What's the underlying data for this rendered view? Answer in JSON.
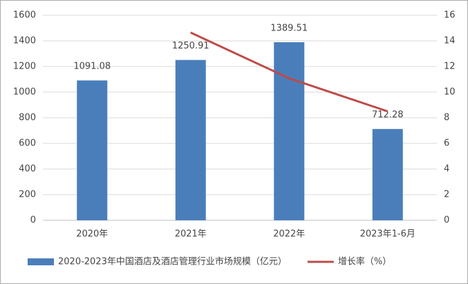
{
  "chart_data": {
    "type": "bar",
    "categories": [
      "2020年",
      "2021年",
      "2022年",
      "2023年1-6月"
    ],
    "series": [
      {
        "name": "2020-2023年中国酒店及酒店管理行业市场规模（亿元）",
        "type": "bar",
        "color": "#4a7ebb",
        "values": [
          1091.08,
          1250.91,
          1389.51,
          712.28
        ],
        "data_labels": true
      },
      {
        "name": "增长率（%）",
        "type": "line",
        "axis": "y2",
        "color": "#be4b48",
        "values": [
          null,
          14.65,
          11.08,
          8.5
        ]
      }
    ],
    "ylim": [
      0,
      1600
    ],
    "yticks": [
      0,
      200,
      400,
      600,
      800,
      1000,
      1200,
      1400,
      1600
    ],
    "y2lim": [
      0,
      16
    ],
    "y2ticks": [
      0,
      2,
      4,
      6,
      8,
      10,
      12,
      14,
      16
    ],
    "grid": true,
    "legend": "bottom"
  }
}
